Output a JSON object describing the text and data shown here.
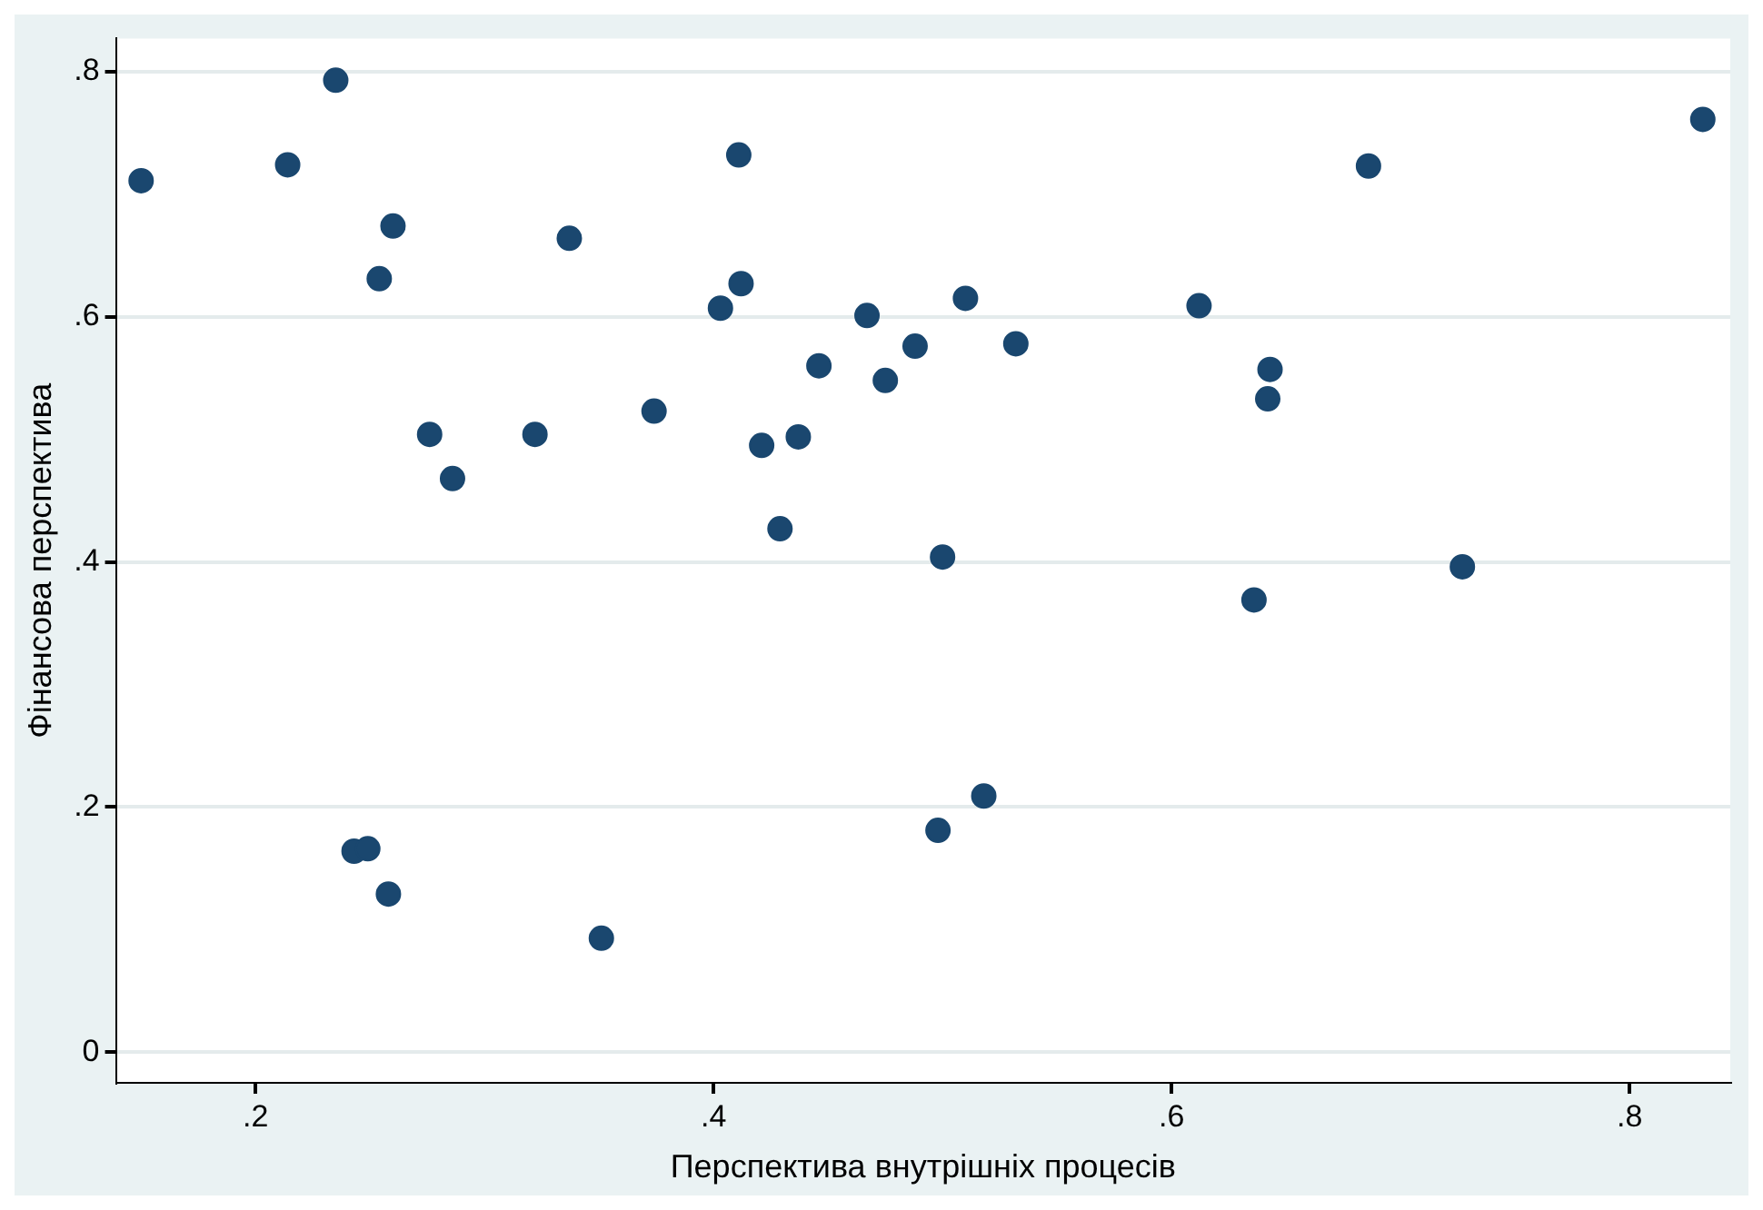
{
  "chart_data": {
    "type": "scatter",
    "xlabel": "Перспектива внутрішніх процесів",
    "ylabel": "Фінансова перспектива",
    "x": [
      0.15,
      0.214,
      0.235,
      0.26,
      0.254,
      0.276,
      0.286,
      0.243,
      0.249,
      0.258,
      0.322,
      0.337,
      0.351,
      0.374,
      0.403,
      0.411,
      0.412,
      0.421,
      0.429,
      0.437,
      0.446,
      0.467,
      0.475,
      0.488,
      0.51,
      0.532,
      0.5,
      0.498,
      0.518,
      0.612,
      0.643,
      0.642,
      0.636,
      0.686,
      0.727,
      0.832
    ],
    "values": [
      0.711,
      0.724,
      0.793,
      0.674,
      0.631,
      0.504,
      0.468,
      0.164,
      0.166,
      0.129,
      0.504,
      0.664,
      0.093,
      0.523,
      0.607,
      0.732,
      0.627,
      0.495,
      0.427,
      0.502,
      0.56,
      0.601,
      0.548,
      0.576,
      0.615,
      0.578,
      0.404,
      0.181,
      0.209,
      0.609,
      0.557,
      0.533,
      0.369,
      0.723,
      0.396,
      0.761
    ],
    "color": "#1a476f",
    "marker": "circle",
    "grid": "y",
    "xlim": [
      0.139,
      0.844
    ],
    "ylim": [
      -0.025,
      0.827
    ],
    "xticks": [
      {
        "value": 0.2,
        "label": ".2"
      },
      {
        "value": 0.4,
        "label": ".4"
      },
      {
        "value": 0.6,
        "label": ".6"
      },
      {
        "value": 0.8,
        "label": ".8"
      }
    ],
    "yticks": [
      0,
      {
        "value": 0.2,
        "label": ".2"
      },
      {
        "value": 0.4,
        "label": ".4"
      },
      {
        "value": 0.6,
        "label": ".6"
      },
      {
        "value": 0.8,
        "label": ".8"
      }
    ]
  }
}
